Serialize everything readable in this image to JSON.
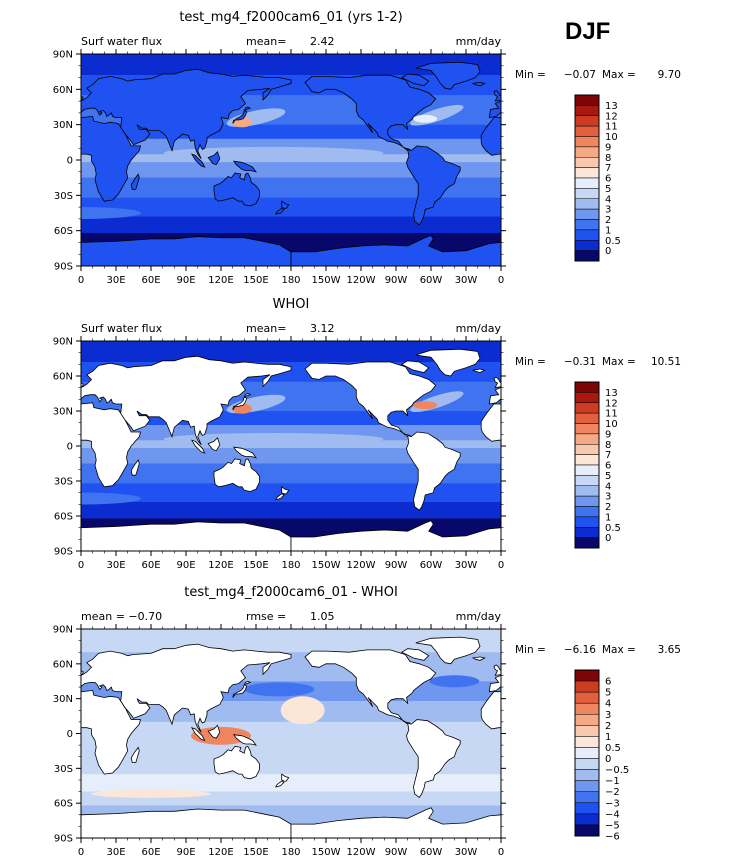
{
  "season": "DJF",
  "units_label": "mm/day",
  "lat_ticks": [
    "90N",
    "60N",
    "30N",
    "0",
    "30S",
    "60S",
    "90S"
  ],
  "lon_ticks": [
    "0",
    "30E",
    "60E",
    "90E",
    "120E",
    "150E",
    "180",
    "150W",
    "120W",
    "90W",
    "60W",
    "30W",
    "0"
  ],
  "colors": {
    "abs_scale": [
      "#08086b",
      "#0b2cd0",
      "#1f52f0",
      "#3f73f0",
      "#6f97f0",
      "#9fbbf0",
      "#c6d8f3",
      "#e6eefb",
      "#fce6d8",
      "#f9c9af",
      "#f5a985",
      "#ef8660",
      "#e2603e",
      "#cc3c22",
      "#a8180e",
      "#7e0505"
    ],
    "diff_scale": [
      "#08086b",
      "#0b2cd0",
      "#1f52f0",
      "#3f73f0",
      "#6f97f0",
      "#9fbbf0",
      "#c6d8f3",
      "#e6eefb",
      "#fce6d8",
      "#f9c9af",
      "#f5a985",
      "#ef8660",
      "#e2603e",
      "#cc3c22",
      "#7e0505"
    ],
    "land": "#ffffff",
    "coast": "#000000"
  },
  "chart_data": [
    {
      "type": "heatmap",
      "title": "test_mg4_f2000cam6_01 (yrs 1-2)",
      "left_header": "Surf water flux",
      "mean_label": "mean=",
      "mean_value": "2.42",
      "min_label": "Min =",
      "min_value": "−0.07",
      "max_label": "Max =",
      "max_value": "9.70",
      "colorbar_levels": [
        "13",
        "12",
        "11",
        "10",
        "9",
        "8",
        "7",
        "6",
        "5",
        "4",
        "3",
        "2",
        "1",
        "0.5",
        "0"
      ],
      "field_mean": 2.42,
      "land_masked": false
    },
    {
      "type": "heatmap",
      "title": "WHOI",
      "left_header": "Surf water flux",
      "mean_label": "mean=",
      "mean_value": "3.12",
      "min_label": "Min =",
      "min_value": "−0.31",
      "max_label": "Max =",
      "max_value": "10.51",
      "colorbar_levels": [
        "13",
        "12",
        "11",
        "10",
        "9",
        "8",
        "7",
        "6",
        "5",
        "4",
        "3",
        "2",
        "1",
        "0.5",
        "0"
      ],
      "field_mean": 3.12,
      "land_masked": true
    },
    {
      "type": "heatmap",
      "title": "test_mg4_f2000cam6_01 - WHOI",
      "left_header": "mean =  −0.70",
      "rmse_label": "rmse =",
      "rmse_value": "1.05",
      "min_label": "Min =",
      "min_value": "−6.16",
      "max_label": "Max =",
      "max_value": "3.65",
      "colorbar_levels": [
        "6",
        "5",
        "4",
        "3",
        "2",
        "1",
        "0.5",
        "0",
        "−0.5",
        "−1",
        "−2",
        "−3",
        "−4",
        "−5",
        "−6"
      ],
      "field_mean": -0.7,
      "land_masked": true
    }
  ]
}
